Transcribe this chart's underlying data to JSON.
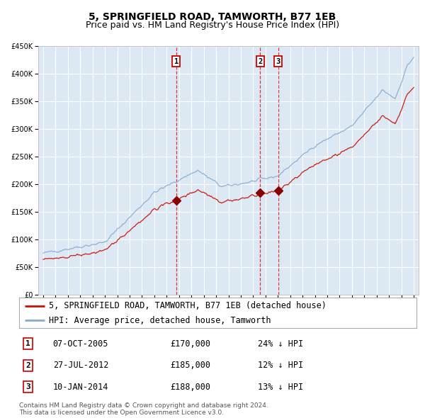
{
  "title": "5, SPRINGFIELD ROAD, TAMWORTH, B77 1EB",
  "subtitle": "Price paid vs. HM Land Registry's House Price Index (HPI)",
  "x_start_year": 1995,
  "x_end_year": 2025,
  "y_min": 0,
  "y_max": 450000,
  "y_ticks": [
    0,
    50000,
    100000,
    150000,
    200000,
    250000,
    300000,
    350000,
    400000,
    450000
  ],
  "plot_bg_color": "#dce9f5",
  "grid_color": "#ffffff",
  "sale_dates": [
    2005.77,
    2012.57,
    2014.03
  ],
  "sale_prices": [
    170000,
    185000,
    188000
  ],
  "sale_labels": [
    "1",
    "2",
    "3"
  ],
  "vline_color": "#dd2222",
  "marker_color": "#880000",
  "red_line_color": "#cc1100",
  "blue_line_color": "#88aacc",
  "legend_entries": [
    "5, SPRINGFIELD ROAD, TAMWORTH, B77 1EB (detached house)",
    "HPI: Average price, detached house, Tamworth"
  ],
  "table_data": [
    [
      "1",
      "07-OCT-2005",
      "£170,000",
      "24% ↓ HPI"
    ],
    [
      "2",
      "27-JUL-2012",
      "£185,000",
      "12% ↓ HPI"
    ],
    [
      "3",
      "10-JAN-2014",
      "£188,000",
      "13% ↓ HPI"
    ]
  ],
  "footer": "Contains HM Land Registry data © Crown copyright and database right 2024.\nThis data is licensed under the Open Government Licence v3.0.",
  "title_fontsize": 10,
  "subtitle_fontsize": 9,
  "tick_fontsize": 7,
  "legend_fontsize": 8.5
}
